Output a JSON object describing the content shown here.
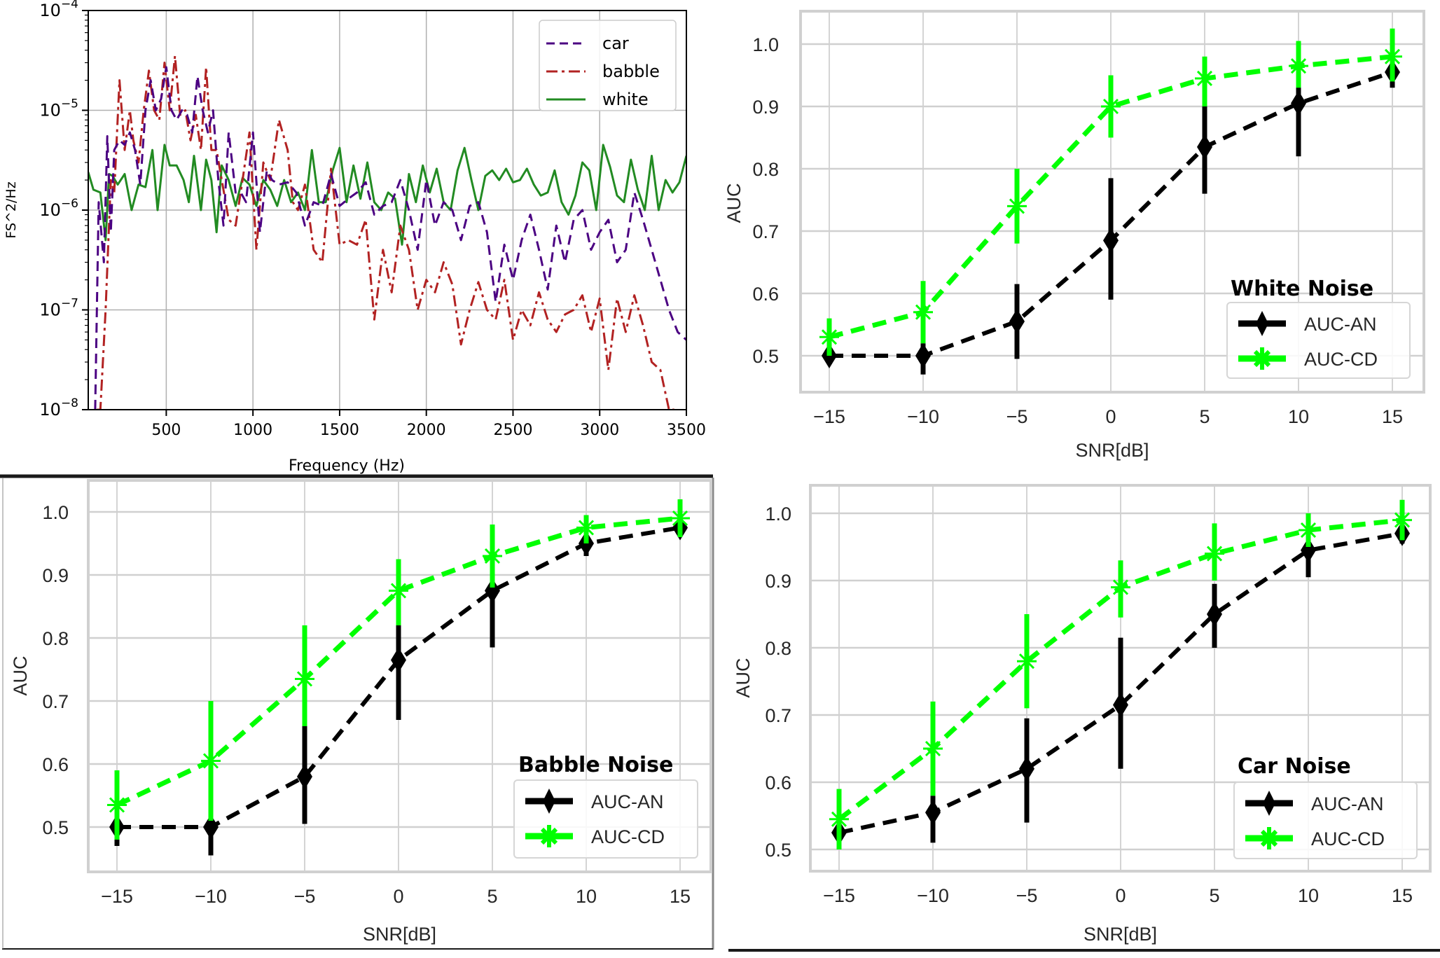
{
  "chart_data": [
    {
      "type": "line",
      "id": "psd",
      "title": "",
      "xlabel": "Frequency (Hz)",
      "ylabel": "FS^2/Hz",
      "yscale": "log",
      "xlim": [
        50,
        3500
      ],
      "ylim": [
        1e-08,
        0.0001
      ],
      "xticks": [
        500,
        1000,
        1500,
        2000,
        2500,
        3000,
        3500
      ],
      "xtick_labels": [
        "500",
        "1000",
        "1500",
        "2000",
        "2500",
        "3000",
        "3500"
      ],
      "yticks": [
        -4,
        -5,
        -6,
        -7,
        -8
      ],
      "ytick_base": "10",
      "ytick_exponents": [
        "−4",
        "−5",
        "−6",
        "−7",
        "−8"
      ],
      "grid": true,
      "legend_position": "top-right",
      "series": [
        {
          "name": "car",
          "color": "#4b0082",
          "style": "dashed",
          "x": [
            90,
            110,
            140,
            160,
            180,
            200,
            230,
            260,
            290,
            320,
            350,
            380,
            410,
            440,
            470,
            500,
            530,
            560,
            590,
            620,
            650,
            680,
            710,
            740,
            770,
            800,
            830,
            860,
            900,
            930,
            960,
            1000,
            1040,
            1080,
            1110,
            1150,
            1200,
            1250,
            1300,
            1350,
            1400,
            1450,
            1500,
            1550,
            1600,
            1650,
            1700,
            1750,
            1800,
            1850,
            1900,
            1950,
            2000,
            2050,
            2100,
            2150,
            2200,
            2250,
            2300,
            2350,
            2400,
            2450,
            2500,
            2550,
            2600,
            2650,
            2700,
            2750,
            2800,
            2850,
            2900,
            2950,
            3000,
            3050,
            3100,
            3150,
            3200,
            3250,
            3300,
            3350,
            3400,
            3450,
            3500
          ],
          "y": [
            1e-08,
            1.2e-06,
            3e-07,
            5.5e-06,
            6e-07,
            4e-06,
            5e-06,
            4.5e-06,
            6e-06,
            4e-06,
            1.8e-06,
            1e-05,
            2e-05,
            1e-05,
            1.3e-05,
            2.7e-05,
            1e-05,
            8e-06,
            1e-05,
            9e-06,
            6e-06,
            2.2e-05,
            1e-05,
            6e-06,
            1e-05,
            2e-06,
            7e-07,
            6e-06,
            1.5e-06,
            1.5e-06,
            1.2e-06,
            6e-06,
            6e-07,
            2.5e-06,
            2e-06,
            1.8e-06,
            1.9e-06,
            1.5e-06,
            7e-07,
            1.2e-06,
            1.1e-06,
            2.3e-06,
            1.1e-06,
            1.3e-06,
            1.5e-06,
            1.9e-06,
            9e-07,
            1.1e-06,
            1.2e-06,
            2e-06,
            1e-06,
            4e-07,
            2e-06,
            7e-07,
            1.2e-06,
            1e-06,
            5e-07,
            1.1e-06,
            1.2e-06,
            6e-07,
            1.2e-07,
            4.5e-07,
            2e-07,
            5e-07,
            9e-07,
            4e-07,
            1.6e-07,
            7e-07,
            3e-07,
            8e-07,
            1e-06,
            4e-07,
            6e-07,
            8e-07,
            3e-07,
            4e-07,
            1.5e-06,
            8e-07,
            4e-07,
            2e-07,
            1e-07,
            6e-08,
            5e-08
          ]
        },
        {
          "name": "babble",
          "color": "#b22222",
          "style": "dashdot",
          "x": [
            100,
            120,
            150,
            180,
            200,
            230,
            260,
            290,
            310,
            340,
            370,
            400,
            430,
            460,
            490,
            520,
            550,
            580,
            610,
            640,
            670,
            700,
            730,
            760,
            790,
            820,
            860,
            900,
            940,
            980,
            1020,
            1060,
            1100,
            1150,
            1200,
            1230,
            1260,
            1300,
            1350,
            1400,
            1450,
            1500,
            1550,
            1600,
            1650,
            1700,
            1750,
            1800,
            1850,
            1900,
            1950,
            2000,
            2050,
            2100,
            2150,
            2200,
            2250,
            2300,
            2350,
            2400,
            2450,
            2500,
            2550,
            2600,
            2650,
            2700,
            2750,
            2800,
            2850,
            2900,
            2950,
            3000,
            3050,
            3100,
            3150,
            3200,
            3250,
            3300,
            3350,
            3400,
            3430
          ],
          "y": [
            1e-08,
            1e-08,
            1e-07,
            2e-06,
            1.5e-06,
            2e-05,
            4e-06,
            1e-05,
            5e-06,
            3e-06,
            1e-05,
            2.5e-05,
            1e-05,
            8e-06,
            3e-05,
            1e-05,
            3.5e-05,
            9e-06,
            1e-05,
            5e-06,
            9e-06,
            4e-06,
            2.7e-05,
            4e-06,
            4e-06,
            2e-06,
            8e-07,
            7e-07,
            2e-06,
            6e-06,
            4e-07,
            3e-06,
            2e-06,
            8e-06,
            4e-06,
            1.2e-06,
            1e-06,
            1.8e-06,
            4e-07,
            3e-07,
            2.6e-06,
            4.5e-07,
            5e-07,
            4.5e-07,
            8e-07,
            8e-08,
            4e-07,
            1.5e-07,
            7e-07,
            4e-07,
            1e-07,
            2e-07,
            1.5e-07,
            3e-07,
            1.8e-07,
            4.5e-08,
            1e-07,
            1.9e-07,
            1e-07,
            8e-08,
            2e-07,
            5e-08,
            1e-07,
            7e-08,
            1.5e-07,
            8e-08,
            6e-08,
            9e-08,
            1e-07,
            1.4e-07,
            6e-08,
            1.3e-07,
            2.5e-08,
            1.3e-07,
            6e-08,
            1.4e-07,
            7e-08,
            3e-08,
            2.5e-08,
            1e-08,
            1e-08
          ]
        },
        {
          "name": "white",
          "color": "#228b22",
          "style": "solid",
          "x": [
            50,
            80,
            120,
            150,
            170,
            190,
            220,
            260,
            300,
            340,
            380,
            420,
            450,
            490,
            520,
            560,
            600,
            630,
            660,
            700,
            730,
            760,
            790,
            820,
            860,
            900,
            940,
            980,
            1020,
            1060,
            1100,
            1140,
            1180,
            1220,
            1260,
            1300,
            1340,
            1380,
            1420,
            1460,
            1500,
            1540,
            1580,
            1620,
            1660,
            1700,
            1740,
            1780,
            1820,
            1860,
            1900,
            1940,
            1980,
            2020,
            2060,
            2100,
            2140,
            2180,
            2220,
            2260,
            2300,
            2340,
            2380,
            2420,
            2460,
            2500,
            2540,
            2580,
            2620,
            2660,
            2700,
            2740,
            2780,
            2820,
            2860,
            2900,
            2940,
            2980,
            3020,
            3060,
            3100,
            3140,
            3180,
            3220,
            3260,
            3300,
            3340,
            3380,
            3420,
            3460,
            3500
          ],
          "y": [
            2.4e-06,
            1.6e-06,
            1.5e-06,
            5e-07,
            2.3e-06,
            2.2e-06,
            1.8e-06,
            2.3e-06,
            1e-06,
            1.8e-06,
            1.7e-06,
            4e-06,
            1e-06,
            4.5e-06,
            2.8e-06,
            2.8e-06,
            2e-06,
            1.2e-06,
            3.5e-06,
            1e-06,
            3.2e-06,
            2e-06,
            6e-07,
            2.8e-06,
            2e-06,
            1.1e-06,
            2.1e-06,
            1.8e-06,
            1.1e-06,
            2e-06,
            1.6e-06,
            1.1e-06,
            2e-06,
            1.2e-06,
            1.5e-06,
            1e-06,
            4e-06,
            1.2e-06,
            1.2e-06,
            2.5e-06,
            4.2e-06,
            1.2e-06,
            2.8e-06,
            1.3e-06,
            3e-06,
            1.2e-06,
            1e-06,
            1.5e-06,
            1.3e-06,
            4.5e-07,
            2.3e-06,
            1.2e-06,
            2.8e-06,
            1.5e-06,
            2.6e-06,
            1.2e-06,
            1e-06,
            2.5e-06,
            4.2e-06,
            2e-06,
            1e-06,
            2.2e-06,
            2.5e-06,
            2e-06,
            2.6e-06,
            1.9e-06,
            2e-06,
            2.6e-06,
            1.8e-06,
            1.4e-06,
            1.5e-06,
            2.5e-06,
            1.2e-06,
            9e-07,
            1.4e-06,
            3e-06,
            2.5e-06,
            1e-06,
            4.5e-06,
            2.7e-06,
            1.4e-06,
            1.2e-06,
            3.2e-06,
            1.6e-06,
            1e-06,
            3.5e-06,
            1e-06,
            2e-06,
            1.5e-06,
            1.9e-06,
            3.5e-06
          ]
        }
      ]
    },
    {
      "type": "line",
      "id": "white-noise",
      "title": "White Noise",
      "xlabel": "SNR[dB]",
      "ylabel": "AUC",
      "x": [
        -15,
        -10,
        -5,
        0,
        5,
        10,
        15
      ],
      "xtick_labels": [
        "−15",
        "−10",
        "−5",
        "0",
        "5",
        "10",
        "15"
      ],
      "yticks": [
        0.5,
        0.6,
        0.7,
        0.8,
        0.9,
        1.0
      ],
      "ytick_labels": [
        "0.5",
        "0.6",
        "0.7",
        "0.8",
        "0.9",
        "1.0"
      ],
      "ylim": [
        0.445,
        1.055
      ],
      "grid": true,
      "legend_position": "lower-right",
      "series": [
        {
          "name": "AUC-AN",
          "color": "#000000",
          "marker": "diamond",
          "values": [
            0.5,
            0.5,
            0.555,
            0.685,
            0.835,
            0.905,
            0.955
          ],
          "err_low": [
            0.49,
            0.47,
            0.495,
            0.59,
            0.76,
            0.82,
            0.93
          ],
          "err_high": [
            0.51,
            0.52,
            0.615,
            0.785,
            0.915,
            0.99,
            0.98
          ]
        },
        {
          "name": "AUC-CD",
          "color": "#00ff00",
          "marker": "star",
          "values": [
            0.53,
            0.57,
            0.74,
            0.9,
            0.945,
            0.965,
            0.98
          ],
          "err_low": [
            0.5,
            0.52,
            0.68,
            0.85,
            0.9,
            0.93,
            0.94
          ],
          "err_high": [
            0.56,
            0.62,
            0.8,
            0.95,
            0.98,
            1.005,
            1.025
          ]
        }
      ]
    },
    {
      "type": "line",
      "id": "babble-noise",
      "title": "Babble Noise",
      "xlabel": "SNR[dB]",
      "ylabel": "AUC",
      "x": [
        -15,
        -10,
        -5,
        0,
        5,
        10,
        15
      ],
      "xtick_labels": [
        "−15",
        "−10",
        "−5",
        "0",
        "5",
        "10",
        "15"
      ],
      "yticks": [
        0.5,
        0.6,
        0.7,
        0.8,
        0.9,
        1.0
      ],
      "ytick_labels": [
        "0.5",
        "0.6",
        "0.7",
        "0.8",
        "0.9",
        "1.0"
      ],
      "ylim": [
        0.43,
        1.05
      ],
      "grid": true,
      "legend_position": "lower-right",
      "series": [
        {
          "name": "AUC-AN",
          "color": "#000000",
          "marker": "diamond",
          "values": [
            0.5,
            0.5,
            0.58,
            0.765,
            0.875,
            0.95,
            0.975
          ],
          "err_low": [
            0.47,
            0.455,
            0.505,
            0.67,
            0.785,
            0.93,
            0.96
          ],
          "err_high": [
            0.53,
            0.55,
            0.66,
            0.82,
            0.915,
            0.97,
            0.99
          ]
        },
        {
          "name": "AUC-CD",
          "color": "#00ff00",
          "marker": "star",
          "values": [
            0.535,
            0.605,
            0.735,
            0.875,
            0.93,
            0.975,
            0.99
          ],
          "err_low": [
            0.48,
            0.51,
            0.66,
            0.82,
            0.88,
            0.95,
            0.96
          ],
          "err_high": [
            0.59,
            0.7,
            0.82,
            0.925,
            0.98,
            0.995,
            1.02
          ]
        }
      ]
    },
    {
      "type": "line",
      "id": "car-noise",
      "title": "Car Noise",
      "xlabel": "SNR[dB]",
      "ylabel": "AUC",
      "x": [
        -15,
        -10,
        -5,
        0,
        5,
        10,
        15
      ],
      "xtick_labels": [
        "−15",
        "−10",
        "−5",
        "0",
        "5",
        "10",
        "15"
      ],
      "yticks": [
        0.5,
        0.6,
        0.7,
        0.8,
        0.9,
        1.0
      ],
      "ytick_labels": [
        "0.5",
        "0.6",
        "0.7",
        "0.8",
        "0.9",
        "1.0"
      ],
      "ylim": [
        0.467,
        1.04
      ],
      "grid": true,
      "legend_position": "lower-right",
      "series": [
        {
          "name": "AUC-AN",
          "color": "#000000",
          "marker": "diamond",
          "values": [
            0.525,
            0.555,
            0.62,
            0.715,
            0.85,
            0.945,
            0.97
          ],
          "err_low": [
            0.51,
            0.51,
            0.54,
            0.62,
            0.8,
            0.905,
            0.955
          ],
          "err_high": [
            0.54,
            0.58,
            0.695,
            0.815,
            0.895,
            0.965,
            0.98
          ]
        },
        {
          "name": "AUC-CD",
          "color": "#00ff00",
          "marker": "star",
          "values": [
            0.545,
            0.65,
            0.78,
            0.89,
            0.94,
            0.975,
            0.99
          ],
          "err_low": [
            0.5,
            0.58,
            0.71,
            0.845,
            0.9,
            0.95,
            0.96
          ],
          "err_high": [
            0.59,
            0.72,
            0.85,
            0.93,
            0.985,
            1.0,
            1.02
          ]
        }
      ]
    }
  ]
}
